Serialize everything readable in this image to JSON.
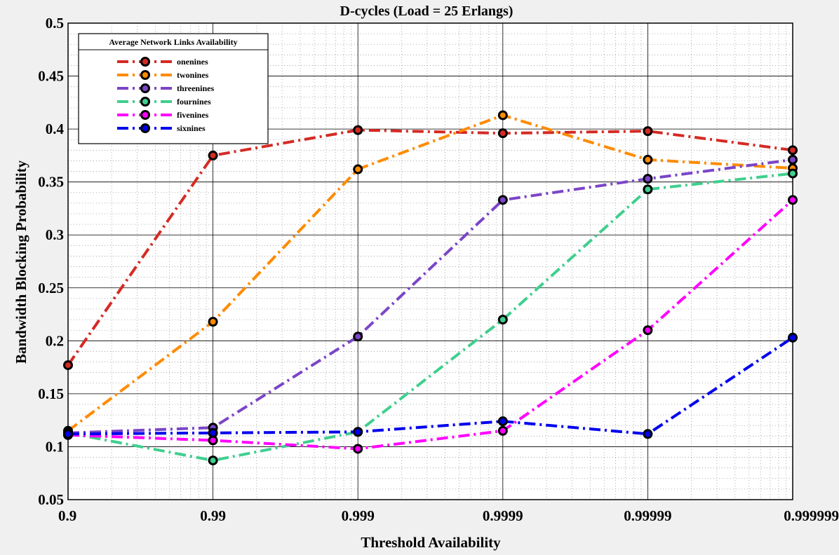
{
  "chart_data": {
    "type": "line",
    "title": "D-cycles (Load  = 25 Erlangs)",
    "xlabel": "Threshold Availability",
    "ylabel": "Bandwidth Blocking Probability",
    "x": [
      0.9,
      0.99,
      0.999,
      0.9999,
      0.99999,
      0.999999
    ],
    "x_tick_labels": [
      "0.9",
      "0.99",
      "0.999",
      "0.9999",
      "0.99999",
      "0.999999"
    ],
    "x_scale": "nines (-log10(1 - x))",
    "ylim": [
      0.05,
      0.5
    ],
    "y_ticks": [
      0.05,
      0.1,
      0.15,
      0.2,
      0.25,
      0.3,
      0.35,
      0.4,
      0.45,
      0.5
    ],
    "y_tick_labels": [
      "0.05",
      "0.1",
      "0.15",
      "0.2",
      "0.25",
      "0.3",
      "0.35",
      "0.4",
      "0.45",
      "0.5"
    ],
    "grid": true,
    "minor_grid": true,
    "legend_title": "Average Network Links Availability",
    "legend_position": "top-left",
    "series": [
      {
        "name": "onenines",
        "color": "#d42a24",
        "values": [
          0.177,
          0.375,
          0.399,
          0.396,
          0.398,
          0.38
        ]
      },
      {
        "name": "twonines",
        "color": "#fe8b00",
        "values": [
          0.115,
          0.218,
          0.362,
          0.413,
          0.371,
          0.363
        ]
      },
      {
        "name": "threenines",
        "color": "#7b45c7",
        "values": [
          0.113,
          0.118,
          0.204,
          0.333,
          0.353,
          0.371
        ]
      },
      {
        "name": "fournines",
        "color": "#3fcf8e",
        "values": [
          0.113,
          0.087,
          0.114,
          0.22,
          0.343,
          0.358
        ]
      },
      {
        "name": "fivenines",
        "color": "#ff00ff",
        "values": [
          0.111,
          0.106,
          0.098,
          0.115,
          0.21,
          0.333
        ]
      },
      {
        "name": "sixnines",
        "color": "#0000ee",
        "values": [
          0.112,
          0.113,
          0.114,
          0.124,
          0.112,
          0.203
        ]
      }
    ]
  }
}
